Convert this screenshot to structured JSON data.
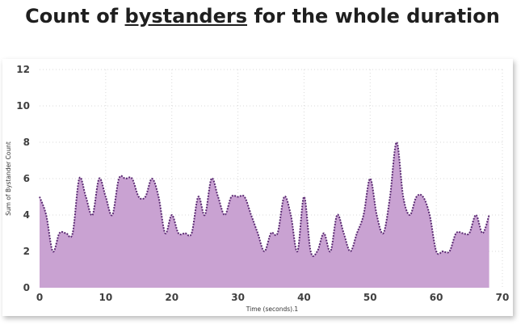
{
  "page": {
    "title_prefix": "Count of ",
    "title_underlined": "bystanders",
    "title_suffix": " for the whole duration"
  },
  "colors": {
    "fill": "#c9a2d2",
    "line": "#5a2a72",
    "grid": "#d9d9d9"
  },
  "chart_data": {
    "type": "area",
    "xlabel": "Time (seconds).1",
    "ylabel": "Sum of Bystander Count",
    "xlim": [
      0,
      70
    ],
    "ylim": [
      0,
      12
    ],
    "xticks": [
      0,
      10,
      20,
      30,
      40,
      50,
      60,
      70
    ],
    "yticks": [
      0,
      2,
      4,
      6,
      8,
      10,
      12
    ],
    "grid": true,
    "x": [
      0,
      1,
      2,
      3,
      4,
      5,
      6,
      7,
      8,
      9,
      10,
      11,
      12,
      13,
      14,
      15,
      16,
      17,
      18,
      19,
      20,
      21,
      22,
      23,
      24,
      25,
      26,
      27,
      28,
      29,
      30,
      31,
      32,
      33,
      34,
      35,
      36,
      37,
      38,
      39,
      40,
      41,
      42,
      43,
      44,
      45,
      46,
      47,
      48,
      49,
      50,
      51,
      52,
      53,
      54,
      55,
      56,
      57,
      58,
      59,
      60,
      61,
      62,
      63,
      64,
      65,
      66,
      67,
      68
    ],
    "series": [
      {
        "values": [
          5,
          4,
          2,
          3,
          3,
          3,
          6,
          5,
          4,
          6,
          5,
          4,
          6,
          6,
          6,
          5,
          5,
          6,
          5,
          3,
          4,
          3,
          3,
          3,
          5,
          4,
          6,
          5,
          4,
          5,
          5,
          5,
          4,
          3,
          2,
          3,
          3,
          5,
          4,
          2,
          5,
          2,
          2,
          3,
          2,
          4,
          3,
          2,
          3,
          4,
          6,
          4,
          3,
          5,
          8,
          5,
          4,
          5,
          5,
          4,
          2,
          2,
          2,
          3,
          3,
          3,
          4,
          3,
          4
        ]
      }
    ]
  }
}
